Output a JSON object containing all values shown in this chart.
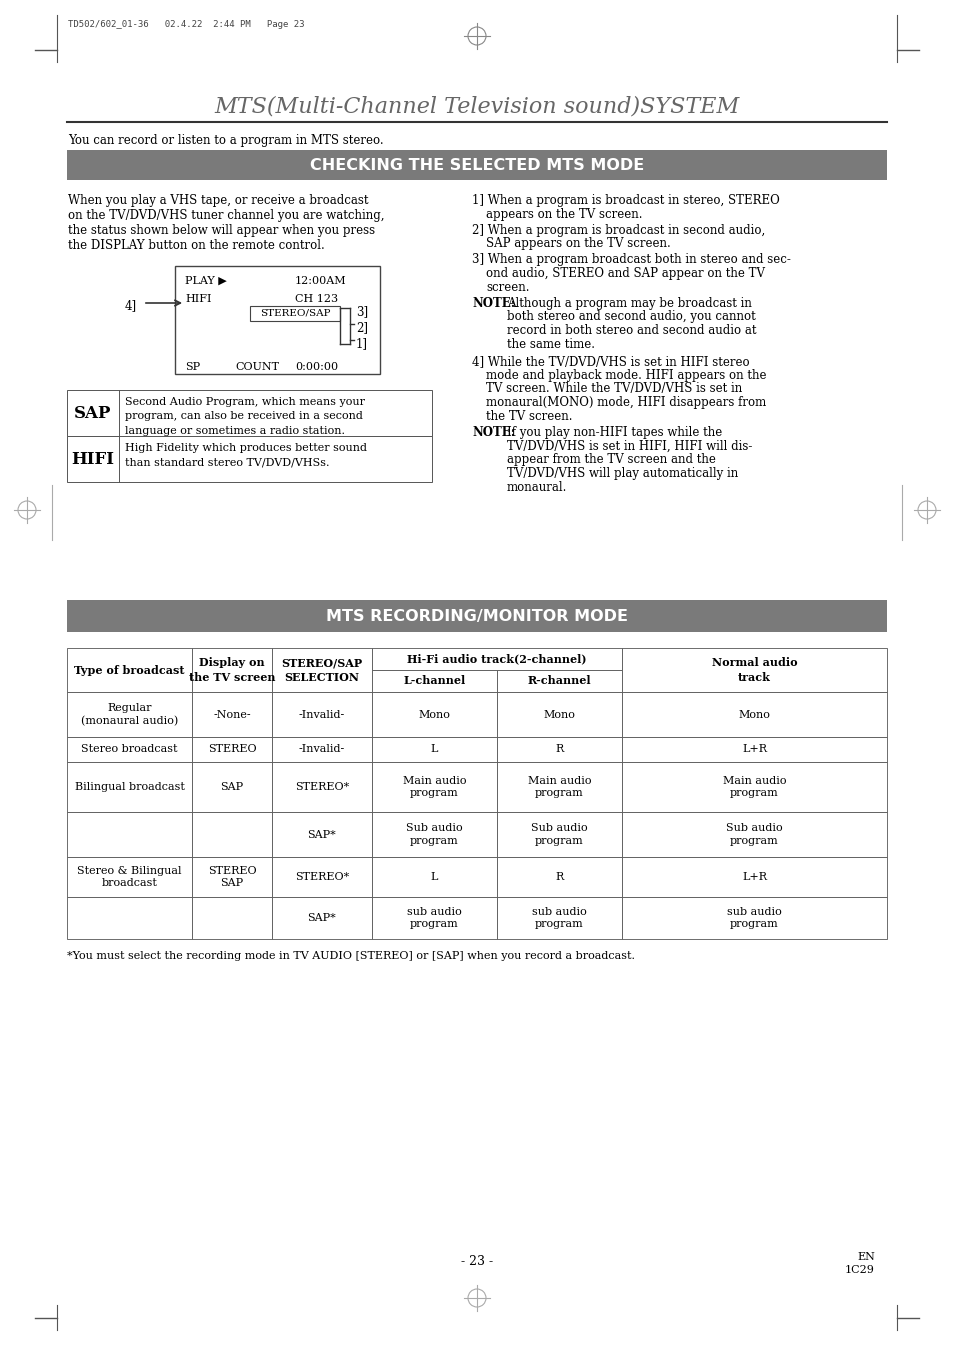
{
  "page_header": "TD502/602_01-36   02.4.22  2:44 PM   Page 23",
  "main_title": "MTS(Multi-Channel Television sound)SYSTEM",
  "subtitle": "You can record or listen to a program in MTS stereo.",
  "section1_header": "CHECKING THE SELECTED MTS MODE",
  "section1_header_bg": "#7a7a7a",
  "section1_header_color": "#ffffff",
  "left_text_lines": [
    "When you play a VHS tape, or receive a broadcast",
    "on the TV/DVD/VHS tuner channel you are watching,",
    "the status shown below will appear when you press",
    "the DISPLAY button on the remote control."
  ],
  "right_items": [
    {
      "type": "numbered",
      "num": "1]",
      "text": "When a program is broadcast in stereo, STEREO\n    appears on the TV screen."
    },
    {
      "type": "numbered",
      "num": "2]",
      "text": "When a program is broadcast in second audio,\n    SAP appears on the TV screen."
    },
    {
      "type": "numbered",
      "num": "3]",
      "text": "When a program broadcast both in stereo and sec-\n    ond audio, STEREO and SAP appear on the TV\n    screen."
    },
    {
      "type": "note",
      "label": "NOTE:",
      "text": "Although a program may be broadcast in\n         both stereo and second audio, you cannot\n         record in both stereo and second audio at\n         the same time."
    },
    {
      "type": "numbered",
      "num": "4]",
      "text": "While the TV/DVD/VHS is set in HIFI stereo\n    mode and playback mode. HIFI appears on the\n    TV screen. While the TV/DVD/VHS is set in\n    monaural(MONO) mode, HIFI disappears from\n    the TV screen."
    },
    {
      "type": "note",
      "label": "NOTE:",
      "text": "If you play non-HIFI tapes while the\n         TV/DVD/VHS is set in HIFI, HIFI will dis-\n         appear from the TV screen and the\n         TV/DVD/VHS will play automatically in\n         monaural."
    }
  ],
  "sap_label": "SAP",
  "sap_desc": "Second Audio Program, which means your\nprogram, can also be received in a second\nlanguage or sometimes a radio station.",
  "hifi_label": "HIFI",
  "hifi_desc": "High Fidelity which produces better sound\nthan standard stereo TV/DVD/VHSs.",
  "section2_header": "MTS RECORDING/MONITOR MODE",
  "section2_header_bg": "#7a7a7a",
  "section2_header_color": "#ffffff",
  "table_rows": [
    [
      "Regular\n(monaural audio)",
      "-None-",
      "-Invalid-",
      "Mono",
      "Mono",
      "Mono"
    ],
    [
      "Stereo broadcast",
      "STEREO",
      "-Invalid-",
      "L",
      "R",
      "L+R"
    ],
    [
      "Bilingual broadcast",
      "SAP",
      "STEREO*",
      "Main audio\nprogram",
      "Main audio\nprogram",
      "Main audio\nprogram"
    ],
    [
      "",
      "",
      "SAP*",
      "Sub audio\nprogram",
      "Sub audio\nprogram",
      "Sub audio\nprogram"
    ],
    [
      "Stereo & Bilingual\nbroadcast",
      "STEREO\nSAP",
      "STEREO*",
      "L",
      "R",
      "L+R"
    ],
    [
      "",
      "",
      "SAP*",
      "sub audio\nprogram",
      "sub audio\nprogram",
      "sub audio\nprogram"
    ]
  ],
  "footnote": "*You must select the recording mode in TV AUDIO [STEREO] or [SAP] when you record a broadcast.",
  "page_number": "- 23 -",
  "page_code_line1": "EN",
  "page_code_line2": "1C29",
  "bg_color": "#ffffff",
  "text_color": "#000000"
}
